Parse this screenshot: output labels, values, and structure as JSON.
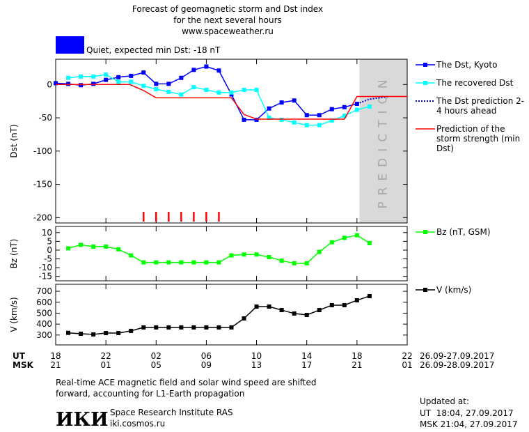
{
  "header": {
    "title_lines": [
      "Forecast of geomagnetic storm and Dst index",
      "for the next several hours",
      "www.spaceweather.ru"
    ],
    "status": "Quiet, expected min Dst: -18 nT",
    "status_color": "#0000ff"
  },
  "chart_data": [
    {
      "type": "line",
      "y_label": "Dst (nT)",
      "xlim": [
        18,
        46
      ],
      "ylim": [
        -208,
        38
      ],
      "yticks": [
        0,
        -50,
        -100,
        -150,
        -200
      ],
      "prediction_region": {
        "xlim": [
          42.2,
          46
        ],
        "label": "PREDICTION"
      },
      "storm_marks": {
        "x": [
          25,
          26,
          27,
          28,
          29,
          30,
          31
        ],
        "color": "#ff0000"
      },
      "series": [
        {
          "name": "The Dst, Kyoto",
          "color": "#0000ff",
          "marker": "square",
          "dash": false,
          "x": [
            18,
            19,
            20,
            21,
            22,
            23,
            24,
            25,
            26,
            27,
            28,
            29,
            30,
            31,
            32,
            33,
            34,
            35,
            36,
            37,
            38,
            39,
            40,
            41,
            42
          ],
          "values": [
            2,
            1,
            -1,
            1,
            7,
            11,
            13,
            18,
            1,
            1,
            10,
            22,
            27,
            21,
            -15,
            -53,
            -53,
            -36,
            -27,
            -24,
            -46,
            -46,
            -37,
            -34,
            -29
          ]
        },
        {
          "name": "The recovered Dst",
          "color": "#00ffff",
          "marker": "square",
          "dash": false,
          "x": [
            19,
            20,
            21,
            22,
            23,
            24,
            25,
            26,
            27,
            28,
            29,
            30,
            31,
            32,
            33,
            34,
            35,
            36,
            37,
            38,
            39,
            40,
            41,
            42,
            43
          ],
          "values": [
            10,
            12,
            12,
            15,
            4,
            4,
            -2,
            -7,
            -11,
            -15,
            -4,
            -8,
            -12,
            -12,
            -8,
            -8,
            -50,
            -53,
            -57,
            -61,
            -61,
            -54,
            -47,
            -38,
            -33
          ]
        },
        {
          "name": "The Dst prediction 2-4 hours ahead",
          "color": "#0000cc",
          "marker": null,
          "dash": true,
          "x": [
            42,
            43,
            44.5
          ],
          "values": [
            -29,
            -22,
            -18
          ]
        },
        {
          "name": "Prediction of the storm strength (min Dst)",
          "color": "#ff0000",
          "marker": null,
          "dash": false,
          "x": [
            18,
            23.9,
            25,
            26,
            32,
            33,
            34,
            41,
            42,
            46
          ],
          "values": [
            0,
            0,
            -9,
            -20,
            -20,
            -45,
            -52,
            -52,
            -18,
            -18
          ]
        }
      ]
    },
    {
      "type": "line",
      "y_label": "Bz (nT)",
      "xlim": [
        18,
        46
      ],
      "ylim": [
        -17.5,
        13.5
      ],
      "yticks": [
        10,
        5,
        0,
        -5,
        -10,
        -15
      ],
      "series": [
        {
          "name": "Bz (nT, GSM)",
          "color": "#00ff00",
          "marker": "square",
          "dash": false,
          "x": [
            19,
            20,
            21,
            22,
            23,
            24,
            25,
            26,
            27,
            28,
            29,
            30,
            31,
            32,
            33,
            34,
            35,
            36,
            37,
            38,
            39,
            40,
            41,
            42,
            43
          ],
          "values": [
            1,
            3,
            2,
            2,
            0.5,
            -3,
            -7,
            -7,
            -7,
            -7,
            -7,
            -7,
            -7,
            -3,
            -2.5,
            -2.5,
            -4,
            -6,
            -7.5,
            -7.5,
            -1,
            4.5,
            7,
            8.5,
            4
          ]
        }
      ]
    },
    {
      "type": "line",
      "y_label": "V (km/s)",
      "xlim": [
        18,
        46
      ],
      "ylim": [
        210,
        764
      ],
      "yticks": [
        300,
        400,
        500,
        600,
        700
      ],
      "xticks": [
        {
          "value": 18,
          "label": "18"
        },
        {
          "value": 22,
          "label": "22"
        },
        {
          "value": 26,
          "label": "02"
        },
        {
          "value": 30,
          "label": "06"
        },
        {
          "value": 34,
          "label": "10"
        },
        {
          "value": 38,
          "label": "14"
        },
        {
          "value": 42,
          "label": "18"
        },
        {
          "value": 46,
          "label": "22"
        }
      ],
      "xticks_msk": [
        {
          "value": 18,
          "label": "21"
        },
        {
          "value": 22,
          "label": "01"
        },
        {
          "value": 26,
          "label": "05"
        },
        {
          "value": 30,
          "label": "09"
        },
        {
          "value": 34,
          "label": "13"
        },
        {
          "value": 38,
          "label": "17"
        },
        {
          "value": 42,
          "label": "21"
        },
        {
          "value": 46,
          "label": "01"
        }
      ],
      "x_rows": [
        {
          "name": "UT",
          "dates": "26.09-27.09.2017"
        },
        {
          "name": "MSK",
          "dates": "26.09-28.09.2017"
        }
      ],
      "series": [
        {
          "name": "V (km/s)",
          "color": "#000000",
          "marker": "square",
          "dash": false,
          "x": [
            19,
            20,
            21,
            22,
            23,
            24,
            25,
            26,
            27,
            28,
            29,
            30,
            31,
            32,
            33,
            34,
            35,
            36,
            37,
            38,
            39,
            40,
            41,
            42,
            43
          ],
          "values": [
            320,
            312,
            306,
            318,
            318,
            338,
            370,
            370,
            370,
            370,
            370,
            370,
            370,
            370,
            452,
            560,
            560,
            528,
            497,
            484,
            528,
            573,
            573,
            618,
            656
          ]
        }
      ]
    }
  ],
  "footer": {
    "note_lines": [
      "Real-time ACE magnetic field and solar wind speed are shifted",
      "forward, accounting for L1-Earth propagation"
    ],
    "logo": "ИКИ",
    "institute": "Space Research Institute RAS",
    "site": "iki.cosmos.ru",
    "updated_lines": [
      "Updated at:",
      "UT  18:04, 27.09.2017",
      "MSK 21:04, 27.09.2017"
    ]
  }
}
